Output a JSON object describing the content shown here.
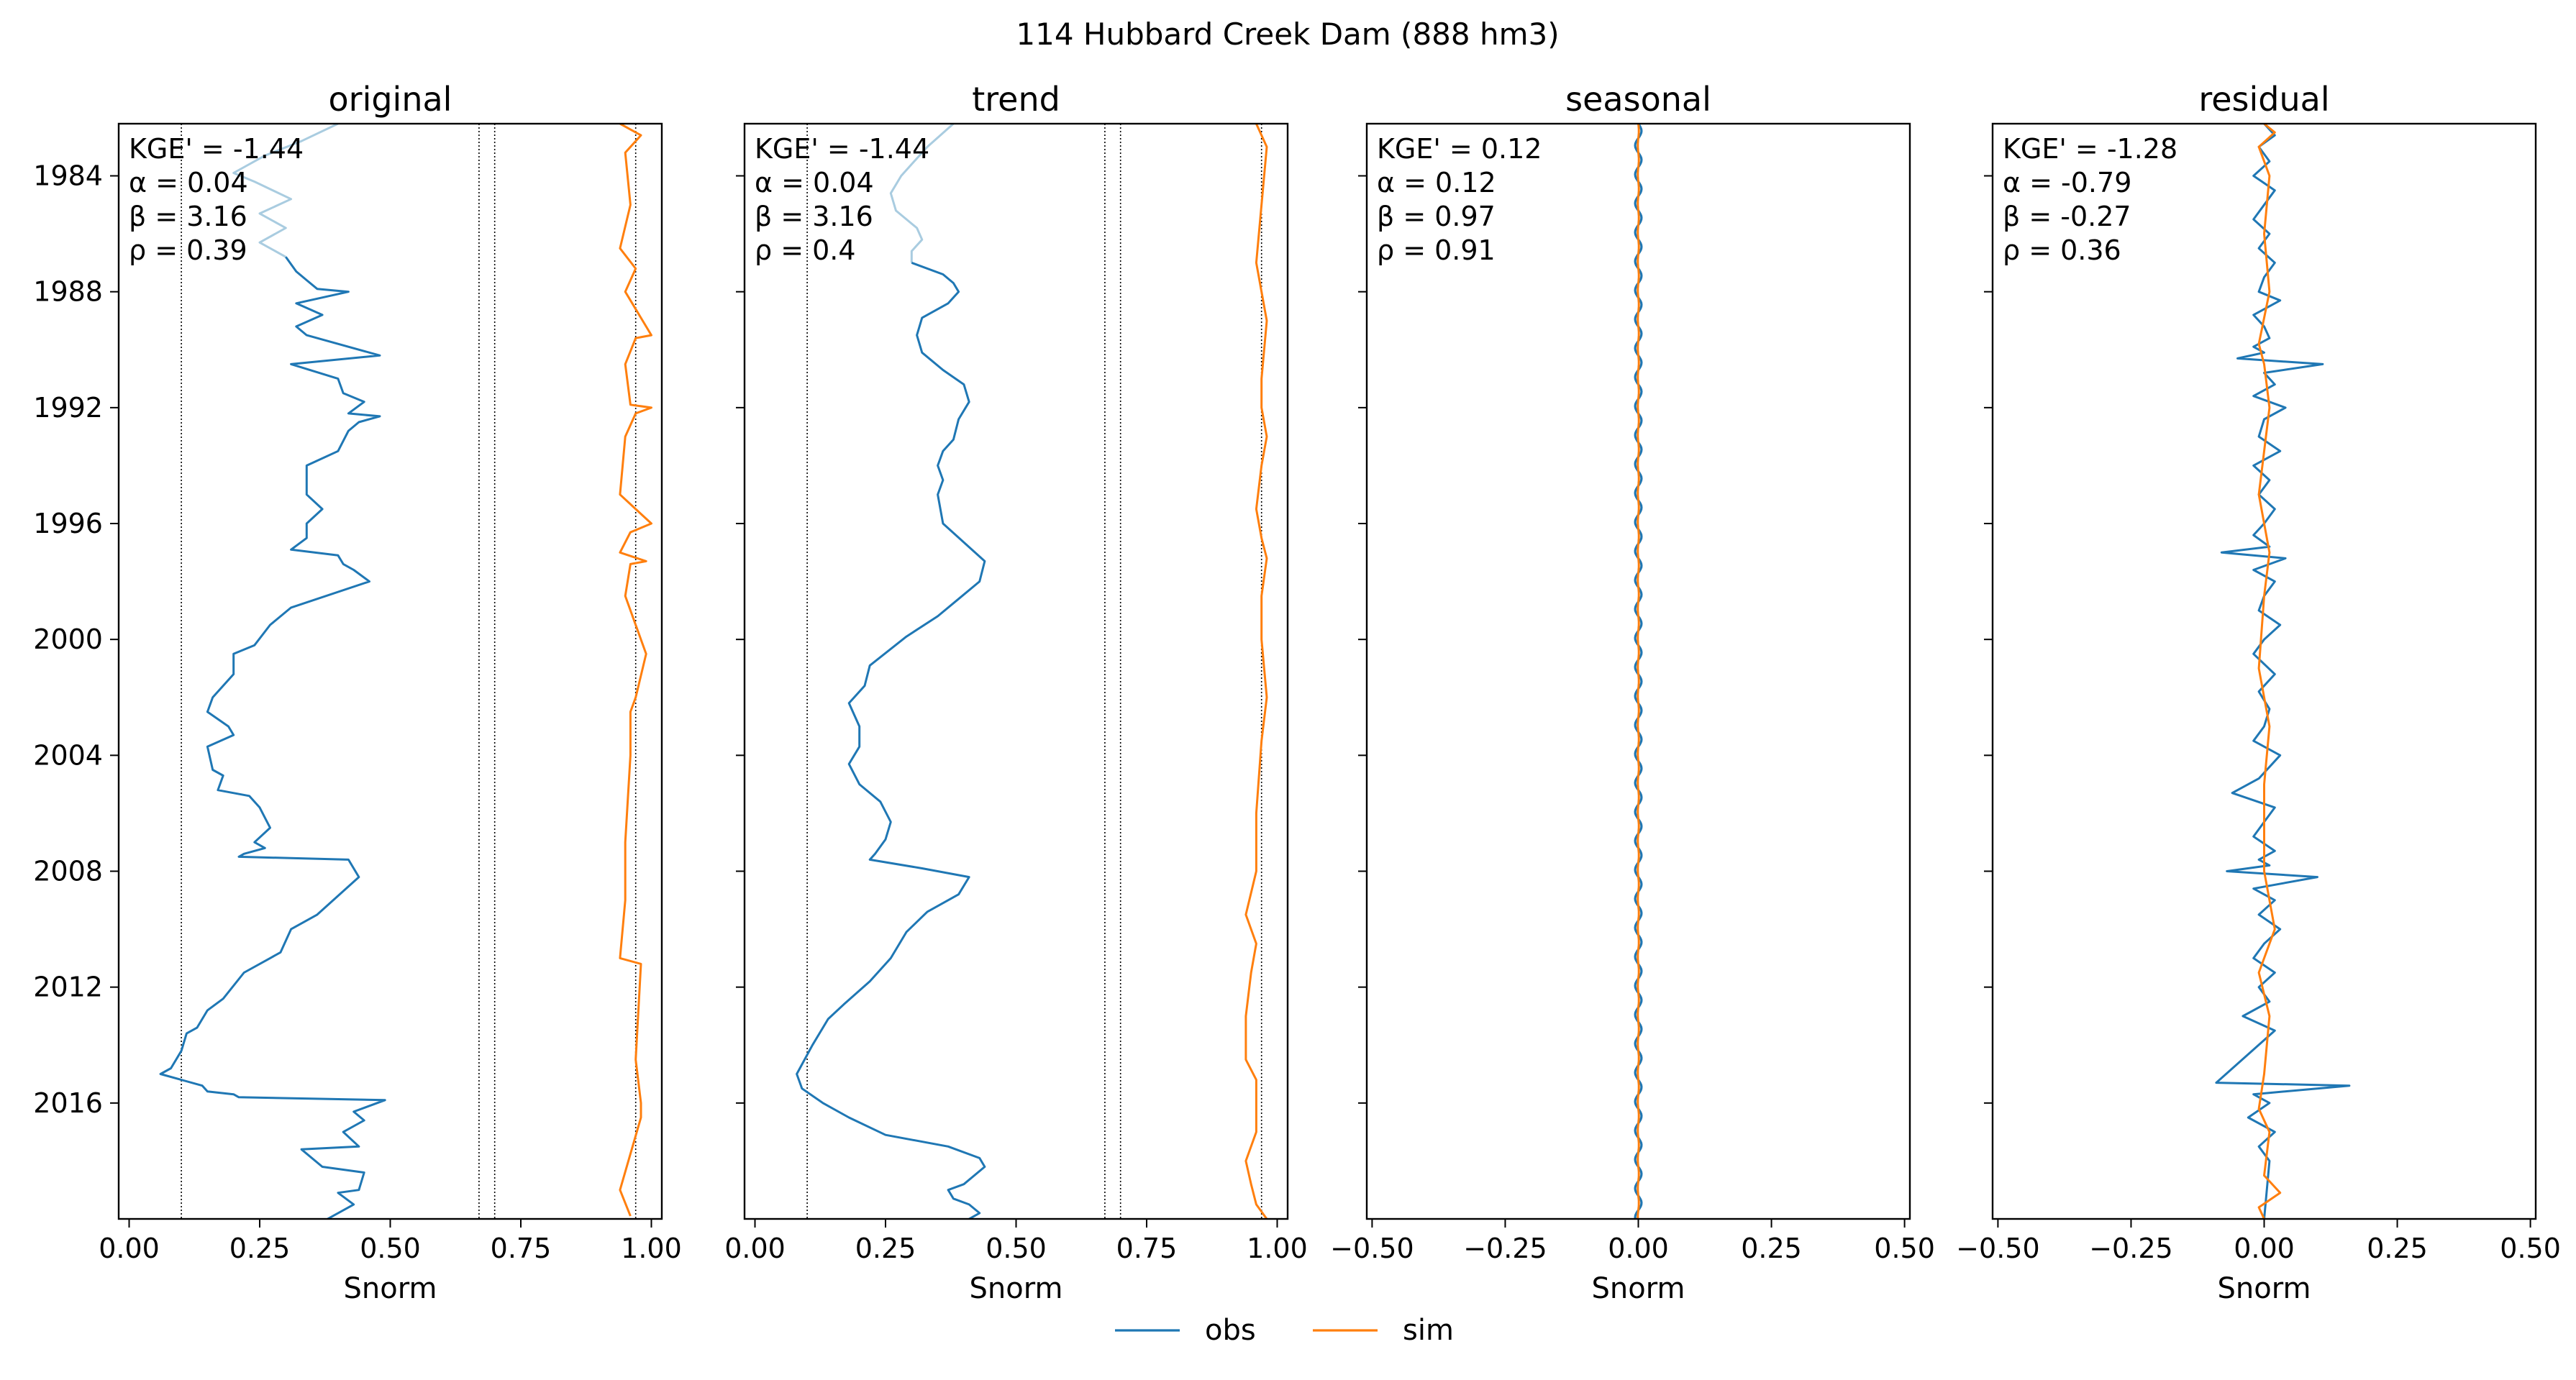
{
  "figure": {
    "suptitle": "114  Hubbard Creek Dam (888 hm3)",
    "legend": [
      {
        "label": "obs",
        "color": "#1f77b4"
      },
      {
        "label": "sim",
        "color": "#ff7f0e"
      }
    ],
    "colors": {
      "obs": "#1f77b4",
      "sim": "#ff7f0e",
      "obs_light": "#a9cce0",
      "ref_line": "#000000"
    }
  },
  "chart_data": [
    {
      "type": "line",
      "title": "original",
      "xlabel": "Snorm",
      "xlim": [
        -0.02,
        1.02
      ],
      "xticks": [
        "0.00",
        "0.25",
        "0.50",
        "0.75",
        "1.00"
      ],
      "xtick_values": [
        0,
        0.25,
        0.5,
        0.75,
        1.0
      ],
      "ylim": [
        1982.2,
        2020.0
      ],
      "yticks": [
        "1984",
        "1988",
        "1992",
        "1996",
        "2000",
        "2004",
        "2008",
        "2012",
        "2016"
      ],
      "ytick_values": [
        1984,
        1988,
        1992,
        1996,
        2000,
        2004,
        2008,
        2012,
        2016
      ],
      "show_ytick_labels": true,
      "ref_lines_x": [
        0.1,
        0.67,
        0.7,
        0.97
      ],
      "stats": [
        "KGE' = -1.44",
        "α = 0.04",
        "β = 3.16",
        "ρ = 0.39"
      ],
      "series": [
        {
          "name": "obs",
          "style": "light",
          "x": [
            0.4,
            0.33,
            0.26,
            0.2,
            0.24,
            0.31,
            0.25,
            0.3,
            0.25,
            0.3
          ],
          "y": [
            1982.2,
            1982.8,
            1983.3,
            1983.9,
            1984.2,
            1984.8,
            1985.3,
            1985.8,
            1986.3,
            1986.8
          ]
        },
        {
          "name": "obs",
          "x": [
            0.3,
            0.32,
            0.34,
            0.36,
            0.42,
            0.32,
            0.37,
            0.32,
            0.34,
            0.48,
            0.31,
            0.4,
            0.41,
            0.45,
            0.42,
            0.48,
            0.44,
            0.42,
            0.4,
            0.34,
            0.34,
            0.37,
            0.34,
            0.34,
            0.31,
            0.4,
            0.41,
            0.43,
            0.46,
            0.31,
            0.27,
            0.24,
            0.2,
            0.2,
            0.16,
            0.15,
            0.19,
            0.2,
            0.15,
            0.16,
            0.18,
            0.17,
            0.23,
            0.25,
            0.27,
            0.24,
            0.26,
            0.22,
            0.21,
            0.42,
            0.44,
            0.36,
            0.31,
            0.29,
            0.27,
            0.22,
            0.18,
            0.15,
            0.13,
            0.11,
            0.1,
            0.08,
            0.06,
            0.1,
            0.14,
            0.15,
            0.2,
            0.21,
            0.49,
            0.43,
            0.45,
            0.41,
            0.44,
            0.33,
            0.37,
            0.45,
            0.44,
            0.4,
            0.43,
            0.38
          ],
          "y": [
            1986.8,
            1987.3,
            1987.6,
            1987.9,
            1988.0,
            1988.4,
            1988.8,
            1989.2,
            1989.5,
            1990.2,
            1990.5,
            1991.0,
            1991.5,
            1991.8,
            1992.2,
            1992.3,
            1992.5,
            1992.8,
            1993.5,
            1994.0,
            1995.0,
            1995.5,
            1996.0,
            1996.5,
            1996.9,
            1997.1,
            1997.4,
            1997.6,
            1998.0,
            1998.9,
            1999.5,
            2000.2,
            2000.5,
            2001.2,
            2002.0,
            2002.5,
            2003.0,
            2003.3,
            2003.7,
            2004.5,
            2004.7,
            2005.2,
            2005.4,
            2005.8,
            2006.5,
            2007.0,
            2007.2,
            2007.4,
            2007.5,
            2007.6,
            2008.2,
            2009.5,
            2010.0,
            2010.8,
            2011.0,
            2011.5,
            2012.4,
            2012.8,
            2013.4,
            2013.6,
            2014.2,
            2014.8,
            2015.0,
            2015.2,
            2015.4,
            2015.6,
            2015.7,
            2015.8,
            2015.9,
            2016.3,
            2016.6,
            2017.0,
            2017.5,
            2017.6,
            2018.2,
            2018.4,
            2019.0,
            2019.1,
            2019.5,
            2020.0
          ]
        },
        {
          "name": "sim",
          "x": [
            0.94,
            0.98,
            0.95,
            0.96,
            0.94,
            0.97,
            0.95,
            1.0,
            0.97,
            0.95,
            0.96,
            1.0,
            0.97,
            0.95,
            0.94,
            0.97,
            1.0,
            0.96,
            0.94,
            0.99,
            0.96,
            0.95,
            0.99,
            0.97,
            0.96,
            0.96,
            0.95,
            0.95,
            0.94,
            0.98,
            0.97,
            0.98,
            0.98,
            0.94,
            0.96
          ],
          "y": [
            1982.2,
            1982.6,
            1983.2,
            1985.0,
            1986.5,
            1987.2,
            1988.0,
            1989.5,
            1989.6,
            1990.5,
            1991.9,
            1992.0,
            1992.2,
            1993.0,
            1995.0,
            1995.5,
            1996.0,
            1996.3,
            1997.0,
            1997.3,
            1997.4,
            1998.5,
            2000.5,
            2002.0,
            2002.5,
            2004.0,
            2007.0,
            2009.0,
            2011.0,
            2011.2,
            2014.5,
            2016.0,
            2016.5,
            2019.0,
            2019.9
          ]
        }
      ]
    },
    {
      "type": "line",
      "title": "trend",
      "xlabel": "Snorm",
      "xlim": [
        -0.02,
        1.02
      ],
      "xticks": [
        "0.00",
        "0.25",
        "0.50",
        "0.75",
        "1.00"
      ],
      "xtick_values": [
        0,
        0.25,
        0.5,
        0.75,
        1.0
      ],
      "ylim": [
        1982.2,
        2020.0
      ],
      "yticks": [
        "1984",
        "1988",
        "1992",
        "1996",
        "2000",
        "2004",
        "2008",
        "2012",
        "2016"
      ],
      "ytick_values": [
        1984,
        1988,
        1992,
        1996,
        2000,
        2004,
        2008,
        2012,
        2016
      ],
      "show_ytick_labels": false,
      "ref_lines_x": [
        0.1,
        0.67,
        0.7,
        0.97
      ],
      "stats": [
        "KGE' = -1.44",
        "α = 0.04",
        "β = 3.16",
        "ρ = 0.4"
      ],
      "series": [
        {
          "name": "obs",
          "style": "light",
          "x": [
            0.38,
            0.33,
            0.28,
            0.26,
            0.27,
            0.31,
            0.32,
            0.3,
            0.3
          ],
          "y": [
            1982.2,
            1983.0,
            1984.0,
            1984.6,
            1985.2,
            1985.8,
            1986.2,
            1986.6,
            1987.0
          ]
        },
        {
          "name": "obs",
          "x": [
            0.3,
            0.36,
            0.38,
            0.39,
            0.37,
            0.32,
            0.31,
            0.32,
            0.36,
            0.4,
            0.41,
            0.39,
            0.38,
            0.36,
            0.35,
            0.36,
            0.35,
            0.36,
            0.44,
            0.43,
            0.39,
            0.35,
            0.29,
            0.22,
            0.21,
            0.18,
            0.2,
            0.2,
            0.18,
            0.2,
            0.24,
            0.26,
            0.25,
            0.23,
            0.22,
            0.32,
            0.41,
            0.39,
            0.33,
            0.29,
            0.26,
            0.22,
            0.17,
            0.14,
            0.11,
            0.08,
            0.09,
            0.13,
            0.18,
            0.25,
            0.37,
            0.43,
            0.44,
            0.4,
            0.37,
            0.38,
            0.41,
            0.43,
            0.41
          ],
          "y": [
            1987.0,
            1987.4,
            1987.7,
            1988.0,
            1988.4,
            1988.9,
            1989.5,
            1990.1,
            1990.7,
            1991.2,
            1991.8,
            1992.4,
            1993.1,
            1993.5,
            1994.0,
            1994.5,
            1995.0,
            1996.0,
            1997.3,
            1998.0,
            1998.6,
            1999.2,
            1999.9,
            2000.9,
            2001.6,
            2002.2,
            2003.0,
            2003.7,
            2004.3,
            2005.0,
            2005.6,
            2006.3,
            2006.9,
            2007.4,
            2007.6,
            2007.9,
            2008.2,
            2008.8,
            2009.4,
            2010.1,
            2011.0,
            2011.8,
            2012.6,
            2013.1,
            2014.0,
            2015.0,
            2015.5,
            2016.0,
            2016.5,
            2017.1,
            2017.5,
            2017.9,
            2018.2,
            2018.8,
            2019.0,
            2019.3,
            2019.5,
            2019.8,
            2020.0
          ]
        },
        {
          "name": "sim",
          "x": [
            0.96,
            0.97,
            0.98,
            0.97,
            0.96,
            0.97,
            0.98,
            0.97,
            0.97,
            0.98,
            0.97,
            0.96,
            0.97,
            0.98,
            0.97,
            0.97,
            0.98,
            0.97,
            0.96,
            0.96,
            0.94,
            0.96,
            0.95,
            0.94,
            0.94,
            0.96,
            0.96,
            0.96,
            0.94,
            0.95,
            0.96,
            0.98
          ],
          "y": [
            1982.2,
            1982.6,
            1983.0,
            1985.0,
            1987.0,
            1988.0,
            1989.0,
            1991.0,
            1992.0,
            1993.0,
            1994.0,
            1995.5,
            1996.5,
            1997.2,
            1998.5,
            2000.0,
            2002.0,
            2003.5,
            2006.0,
            2008.0,
            2009.5,
            2010.5,
            2011.5,
            2013.0,
            2014.5,
            2015.2,
            2016.0,
            2017.0,
            2018.0,
            2018.8,
            2019.5,
            2020.0
          ]
        }
      ]
    },
    {
      "type": "line",
      "title": "seasonal",
      "xlabel": "Snorm",
      "xlim": [
        -0.51,
        0.51
      ],
      "xticks": [
        "−0.50",
        "−0.25",
        "0.00",
        "0.25",
        "0.50"
      ],
      "xtick_values": [
        -0.5,
        -0.25,
        0,
        0.25,
        0.5
      ],
      "ylim": [
        1982.2,
        2020.0
      ],
      "yticks": [
        "1984",
        "1988",
        "1992",
        "1996",
        "2000",
        "2004",
        "2008",
        "2012",
        "2016"
      ],
      "ytick_values": [
        1984,
        1988,
        1992,
        1996,
        2000,
        2004,
        2008,
        2012,
        2016
      ],
      "show_ytick_labels": false,
      "ref_lines_x": [],
      "stats": [
        "KGE' = 0.12",
        "α = 0.12",
        "β = 0.97",
        "ρ = 0.91"
      ],
      "seasonal": {
        "y_start": 1982.2,
        "y_end": 2020.0,
        "period_years": 1,
        "obs_amplitude": 0.006,
        "sim_amplitude": 0.001,
        "center": 0.0
      }
    },
    {
      "type": "line",
      "title": "residual",
      "xlabel": "Snorm",
      "xlim": [
        -0.51,
        0.51
      ],
      "xticks": [
        "−0.50",
        "−0.25",
        "0.00",
        "0.25",
        "0.50"
      ],
      "xtick_values": [
        -0.5,
        -0.25,
        0,
        0.25,
        0.5
      ],
      "ylim": [
        1982.2,
        2020.0
      ],
      "yticks": [
        "1984",
        "1988",
        "1992",
        "1996",
        "2000",
        "2004",
        "2008",
        "2012",
        "2016"
      ],
      "ytick_values": [
        1984,
        1988,
        1992,
        1996,
        2000,
        2004,
        2008,
        2012,
        2016
      ],
      "show_ytick_labels": false,
      "ref_lines_x": [],
      "stats": [
        "KGE' = -1.28",
        "α = -0.79",
        "β = -0.27",
        "ρ = 0.36"
      ],
      "series": [
        {
          "name": "obs",
          "x": [
            0.0,
            0.02,
            -0.01,
            0.01,
            -0.02,
            0.02,
            0.0,
            -0.02,
            0.01,
            -0.01,
            0.02,
            0.0,
            -0.01,
            0.03,
            -0.02,
            0.0,
            0.01,
            -0.02,
            0.0,
            -0.05,
            0.11,
            0.0,
            0.02,
            -0.02,
            0.04,
            0.0,
            -0.01,
            0.03,
            -0.02,
            0.01,
            -0.01,
            0.02,
            0.0,
            -0.02,
            0.01,
            -0.08,
            0.04,
            -0.02,
            0.02,
            0.0,
            -0.01,
            0.03,
            0.0,
            -0.02,
            0.02,
            -0.01,
            0.01,
            0.0,
            -0.02,
            0.03,
            -0.01,
            -0.06,
            0.02,
            0.0,
            -0.02,
            0.02,
            -0.01,
            0.01,
            -0.07,
            0.1,
            -0.02,
            0.02,
            -0.01,
            0.03,
            0.0,
            -0.02,
            0.02,
            -0.01,
            0.01,
            -0.04,
            0.02,
            -0.09,
            0.16,
            -0.02,
            0.01,
            -0.03,
            0.02,
            -0.01,
            0.01,
            0.0
          ],
          "y": [
            1982.2,
            1982.6,
            1983.0,
            1983.5,
            1984.0,
            1984.5,
            1985.0,
            1985.5,
            1986.0,
            1986.5,
            1987.0,
            1987.5,
            1988.0,
            1988.3,
            1988.8,
            1989.2,
            1989.6,
            1989.9,
            1990.1,
            1990.3,
            1990.5,
            1990.8,
            1991.2,
            1991.6,
            1992.0,
            1992.4,
            1993.0,
            1993.5,
            1994.0,
            1994.5,
            1995.0,
            1995.5,
            1996.0,
            1996.4,
            1996.8,
            1997.0,
            1997.2,
            1997.6,
            1998.0,
            1998.5,
            1999.0,
            1999.5,
            2000.0,
            2000.5,
            2001.2,
            2001.8,
            2002.4,
            2003.0,
            2003.5,
            2004.0,
            2004.8,
            2005.3,
            2005.8,
            2006.3,
            2006.8,
            2007.3,
            2007.6,
            2007.8,
            2008.0,
            2008.2,
            2008.6,
            2009.0,
            2009.5,
            2010.0,
            2010.5,
            2011.0,
            2011.5,
            2012.0,
            2012.5,
            2013.0,
            2013.5,
            2015.3,
            2015.4,
            2015.7,
            2016.0,
            2016.5,
            2017.0,
            2017.5,
            2018.0,
            2020.0
          ]
        },
        {
          "name": "sim",
          "x": [
            0.0,
            0.02,
            -0.01,
            0.01,
            0.0,
            0.01,
            -0.01,
            0.0,
            0.01,
            0.0,
            -0.01,
            0.01,
            0.0,
            -0.01,
            0.01,
            0.0,
            0.0,
            0.02,
            -0.01,
            0.01,
            0.0,
            -0.01,
            0.01,
            0.0,
            0.03,
            -0.01,
            0.0
          ],
          "y": [
            1982.2,
            1982.5,
            1983.0,
            1984.0,
            1986.0,
            1988.0,
            1989.8,
            1990.5,
            1992.0,
            1993.5,
            1995.0,
            1997.0,
            1998.5,
            2001.0,
            2003.0,
            2005.0,
            2008.0,
            2010.0,
            2011.5,
            2013.0,
            2015.0,
            2016.2,
            2017.0,
            2018.5,
            2019.1,
            2019.6,
            2020.0
          ]
        }
      ]
    }
  ]
}
